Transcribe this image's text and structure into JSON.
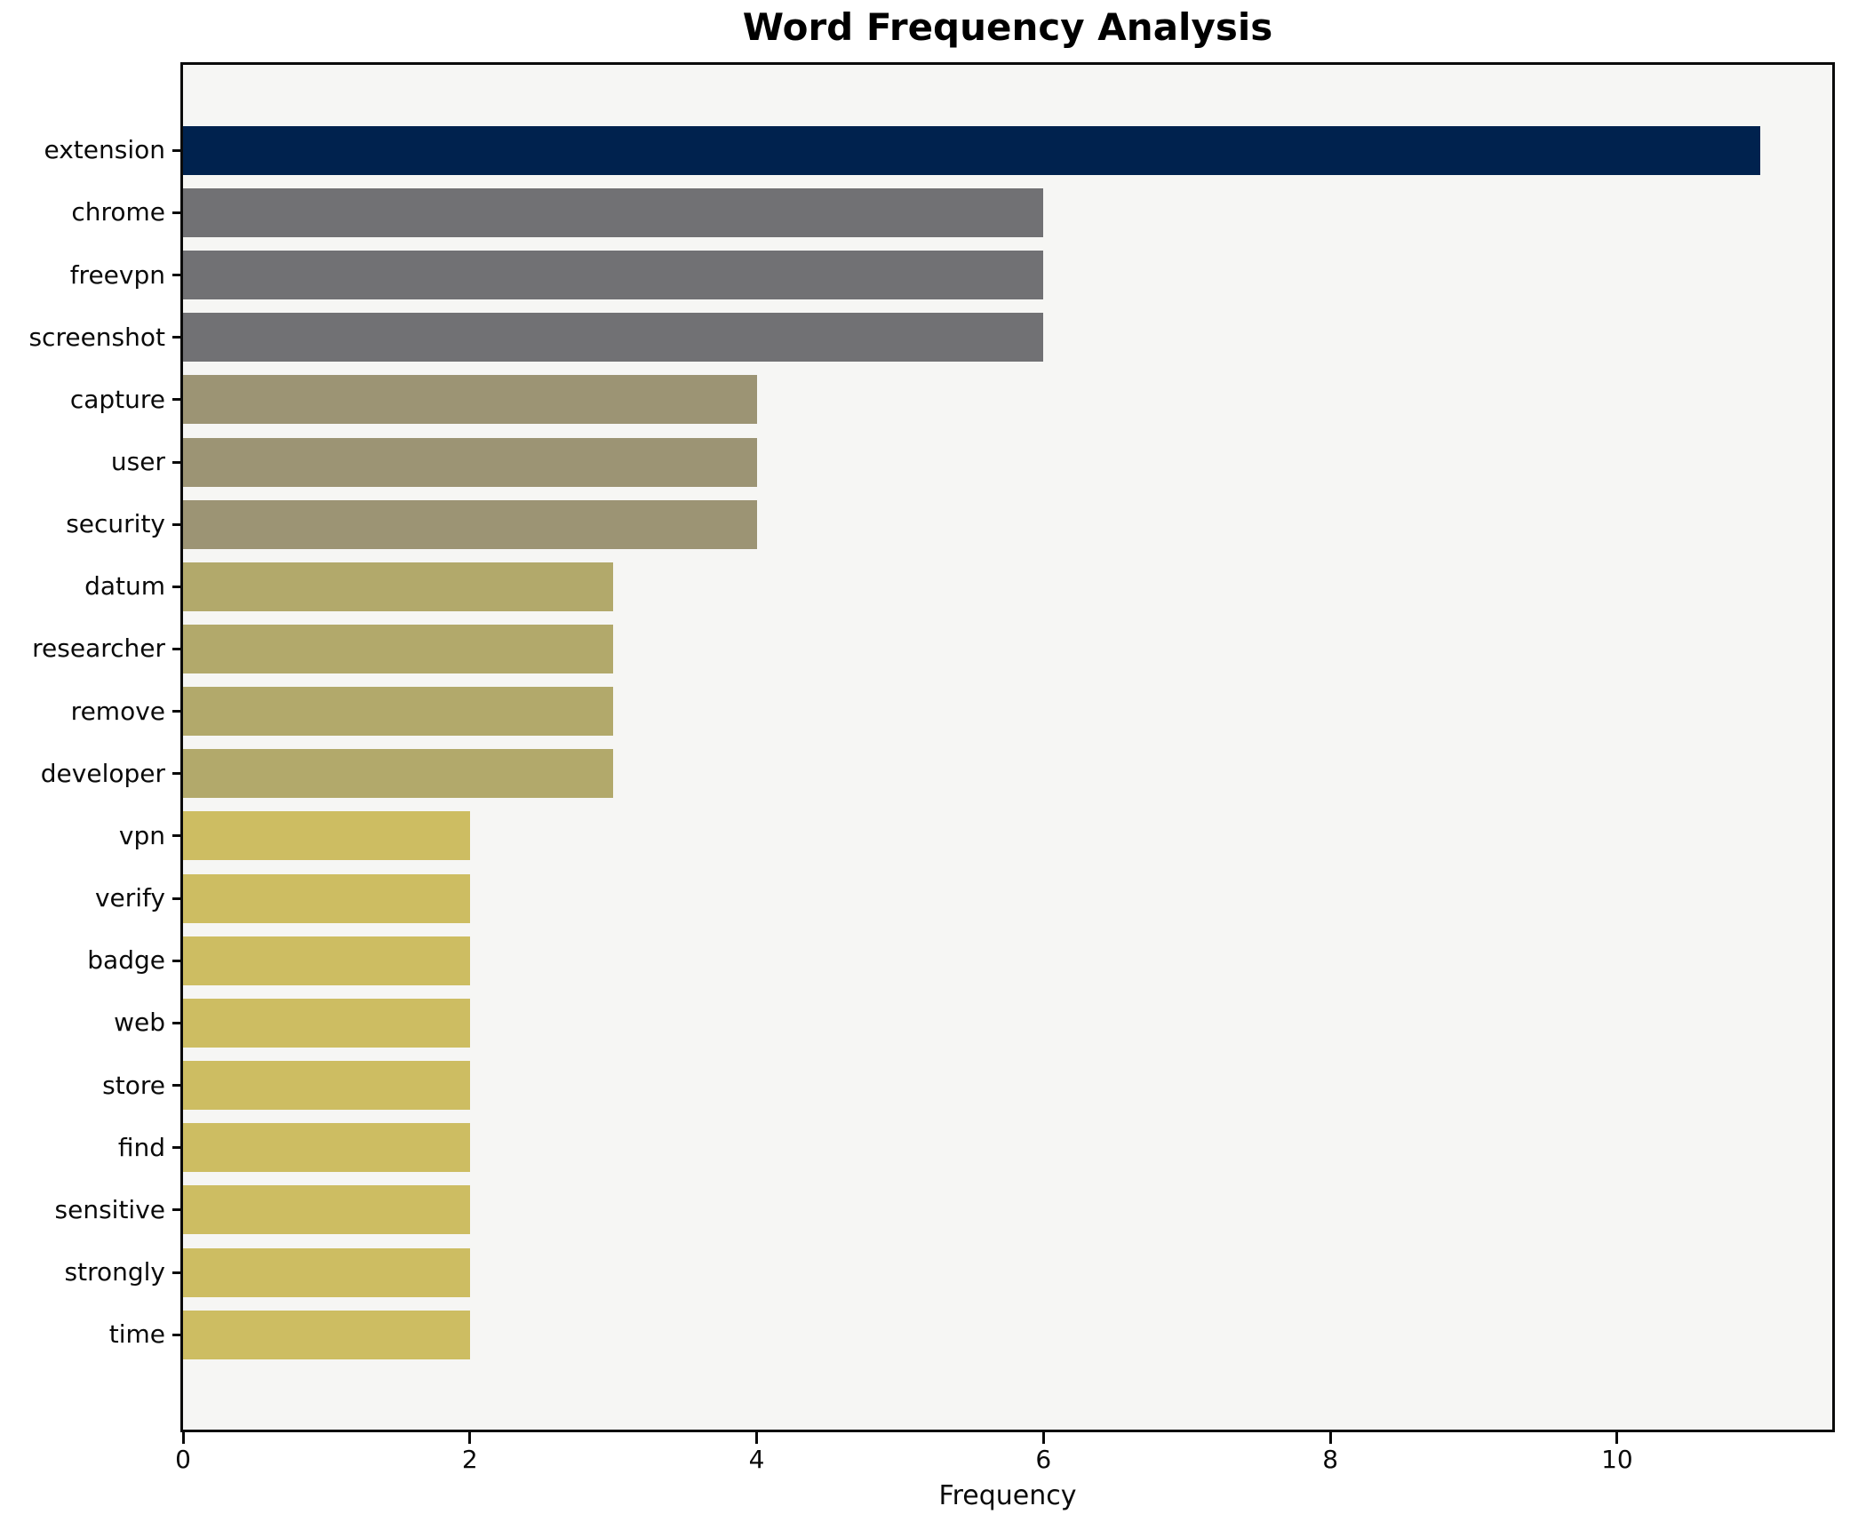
{
  "chart_data": {
    "type": "bar",
    "orientation": "horizontal",
    "title": "Word Frequency Analysis",
    "xlabel": "Frequency",
    "ylabel": "",
    "categories": [
      "extension",
      "chrome",
      "freevpn",
      "screenshot",
      "capture",
      "user",
      "security",
      "datum",
      "researcher",
      "remove",
      "developer",
      "vpn",
      "verify",
      "badge",
      "web",
      "store",
      "find",
      "sensitive",
      "strongly",
      "time"
    ],
    "values": [
      11,
      6,
      6,
      6,
      4,
      4,
      4,
      3,
      3,
      3,
      3,
      2,
      2,
      2,
      2,
      2,
      2,
      2,
      2,
      2
    ],
    "bar_colors": [
      "#00224e",
      "#717174",
      "#717174",
      "#717174",
      "#9c9474",
      "#9c9474",
      "#9c9474",
      "#b2a96b",
      "#b2a96b",
      "#b2a96b",
      "#b2a96b",
      "#cdbd62",
      "#cdbd62",
      "#cdbd62",
      "#cdbd62",
      "#cdbd62",
      "#cdbd62",
      "#cdbd62",
      "#cdbd62",
      "#cdbd62"
    ],
    "xticks": [
      0,
      2,
      4,
      6,
      8,
      10
    ],
    "xlim": [
      0,
      11.5
    ],
    "grid": false,
    "legend": null,
    "colors": {
      "plot_background": "#f6f6f4",
      "figure_background": "#ffffff",
      "axis": "#0a0a0a",
      "text": "#000000"
    }
  }
}
